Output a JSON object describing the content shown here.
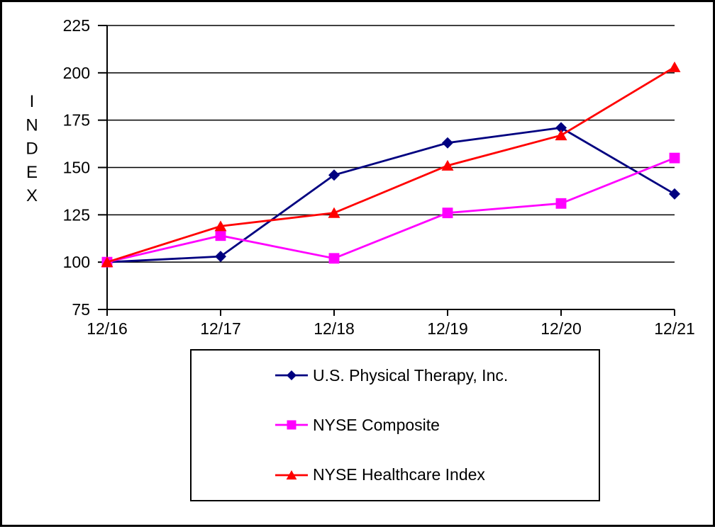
{
  "window": {
    "background": "#FFFFFF",
    "frame_color": "#000000"
  },
  "chart_data": {
    "type": "line",
    "title": "",
    "xlabel": "",
    "ylabel": "INDEX",
    "categories": [
      "12/16",
      "12/17",
      "12/18",
      "12/19",
      "12/20",
      "12/21"
    ],
    "series": [
      {
        "name": "U.S. Physical Therapy, Inc.",
        "color": "#000080",
        "marker": "diamond",
        "values": [
          100,
          103,
          146,
          163,
          171,
          136
        ]
      },
      {
        "name": "NYSE Composite",
        "color": "#FF00FF",
        "marker": "square",
        "values": [
          100,
          114,
          102,
          126,
          131,
          155
        ]
      },
      {
        "name": "NYSE Healthcare Index",
        "color": "#FF0000",
        "marker": "triangle",
        "values": [
          100,
          119,
          126,
          151,
          167,
          203
        ]
      }
    ],
    "ylim": [
      75,
      225
    ],
    "yticks": [
      225,
      200,
      175,
      150,
      125,
      100,
      75
    ],
    "grid": "horizontal",
    "gridline_color": "#000000",
    "axis_color": "#000000",
    "text_color": "#000000",
    "legend_position": "bottom-center"
  }
}
